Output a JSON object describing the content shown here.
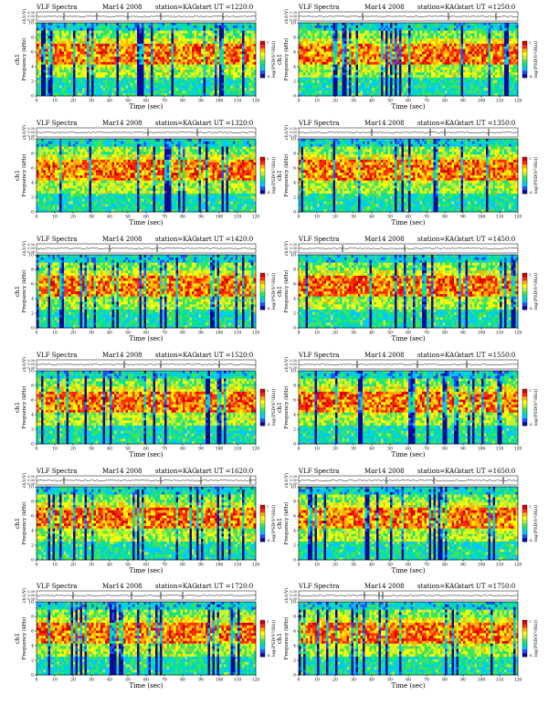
{
  "panel_header": {
    "title": "VLF Spectra",
    "date": "Mar14 2008",
    "station": "station=KAG",
    "start_prefix": "start  UT ="
  },
  "axis_labels": {
    "waveform_ylabel": "ch1(V)",
    "spectrogram_ylabel": "Frequency  (kHz)",
    "channel_label": "ch1",
    "xlabel": "Time  (sec)",
    "colorbar_label": "log(PSD(V²/Hz))"
  },
  "colors": {
    "colormap": [
      "#0a0a9a",
      "#1e4fff",
      "#00c8ff",
      "#00e0a0",
      "#3fe45a",
      "#b8f03a",
      "#ffff00",
      "#ffb000",
      "#ff3000",
      "#d80000"
    ]
  },
  "chart_data": [
    {
      "type": "heatmap",
      "start_ut": "1220:0",
      "x_ticks": [
        0,
        10,
        20,
        30,
        40,
        50,
        60,
        70,
        80,
        90,
        100,
        110,
        120
      ],
      "y_ticks": [
        0,
        2,
        4,
        6,
        8,
        10
      ],
      "waveform_ticks": [
        "0.30",
        "0.00",
        "-0.30"
      ],
      "colorbar_ticks": [
        1,
        -4
      ],
      "xlim": [
        0,
        120
      ],
      "ylim": [
        0,
        10
      ],
      "spike_times": [
        15,
        33,
        50,
        68,
        102
      ]
    },
    {
      "type": "heatmap",
      "start_ut": "1250:0",
      "x_ticks": [
        0,
        10,
        20,
        30,
        40,
        50,
        60,
        70,
        80,
        90,
        100,
        110,
        120
      ],
      "y_ticks": [
        0,
        2,
        4,
        6,
        8,
        10
      ],
      "waveform_ticks": [
        "0.30",
        "0.00",
        "-0.30"
      ],
      "colorbar_ticks": [
        1,
        -4
      ],
      "xlim": [
        0,
        120
      ],
      "ylim": [
        0,
        10
      ],
      "spike_times": [
        35,
        82,
        108
      ]
    },
    {
      "type": "heatmap",
      "start_ut": "1320:0",
      "x_ticks": [
        0,
        10,
        20,
        30,
        40,
        50,
        60,
        70,
        80,
        90,
        100,
        110,
        120
      ],
      "y_ticks": [
        0,
        2,
        4,
        6,
        8,
        10
      ],
      "waveform_ticks": [
        "0.30",
        "0.00",
        "-0.30"
      ],
      "colorbar_ticks": [
        1,
        -4
      ],
      "xlim": [
        0,
        120
      ],
      "ylim": [
        0,
        10
      ],
      "spike_times": [
        61,
        88
      ]
    },
    {
      "type": "heatmap",
      "start_ut": "1350:0",
      "x_ticks": [
        0,
        10,
        20,
        30,
        40,
        50,
        60,
        70,
        80,
        90,
        100,
        110,
        120
      ],
      "y_ticks": [
        0,
        2,
        4,
        6,
        8,
        10
      ],
      "waveform_ticks": [
        "0.30",
        "0.00",
        "-0.30"
      ],
      "colorbar_ticks": [
        1,
        -4
      ],
      "xlim": [
        0,
        120
      ],
      "ylim": [
        0,
        10
      ],
      "spike_times": [
        40,
        72,
        80,
        104
      ]
    },
    {
      "type": "heatmap",
      "start_ut": "1420:0",
      "x_ticks": [
        0,
        10,
        20,
        30,
        40,
        50,
        60,
        70,
        80,
        90,
        100,
        110,
        120
      ],
      "y_ticks": [
        0,
        2,
        4,
        6,
        8,
        10
      ],
      "waveform_ticks": [
        "0.30",
        "0.00",
        "-0.30"
      ],
      "colorbar_ticks": [
        1,
        -4
      ],
      "xlim": [
        0,
        120
      ],
      "ylim": [
        0,
        10
      ],
      "spike_times": [
        40,
        66
      ]
    },
    {
      "type": "heatmap",
      "start_ut": "1450:0",
      "x_ticks": [
        0,
        10,
        20,
        30,
        40,
        50,
        60,
        70,
        80,
        90,
        100,
        110,
        120
      ],
      "y_ticks": [
        0,
        2,
        4,
        6,
        8,
        10
      ],
      "waveform_ticks": [
        "0.30",
        "0.00",
        "-0.30"
      ],
      "colorbar_ticks": [
        1,
        -4
      ],
      "xlim": [
        0,
        120
      ],
      "ylim": [
        0,
        10
      ],
      "spike_times": [
        24,
        58
      ]
    },
    {
      "type": "heatmap",
      "start_ut": "1520:0",
      "x_ticks": [
        0,
        10,
        20,
        30,
        40,
        50,
        60,
        70,
        80,
        90,
        100,
        110,
        120
      ],
      "y_ticks": [
        0,
        2,
        4,
        6,
        8,
        10
      ],
      "waveform_ticks": [
        "0.30",
        "0.00",
        "-0.30"
      ],
      "colorbar_ticks": [
        1,
        -4
      ],
      "xlim": [
        0,
        120
      ],
      "ylim": [
        0,
        10
      ],
      "spike_times": [
        48,
        68,
        100
      ]
    },
    {
      "type": "heatmap",
      "start_ut": "1550:0",
      "x_ticks": [
        0,
        10,
        20,
        30,
        40,
        50,
        60,
        70,
        80,
        90,
        100,
        110,
        120
      ],
      "y_ticks": [
        0,
        2,
        4,
        6,
        8,
        10
      ],
      "waveform_ticks": [
        "0.30",
        "0.00",
        "-0.30"
      ],
      "colorbar_ticks": [
        1,
        -4
      ],
      "xlim": [
        0,
        120
      ],
      "ylim": [
        0,
        10
      ],
      "spike_times": [
        32,
        65,
        92
      ]
    },
    {
      "type": "heatmap",
      "start_ut": "1620:0",
      "x_ticks": [
        0,
        10,
        20,
        30,
        40,
        50,
        60,
        70,
        80,
        90,
        100,
        110,
        120
      ],
      "y_ticks": [
        0,
        2,
        4,
        6,
        8,
        10
      ],
      "waveform_ticks": [
        "0.30",
        "0.00",
        "-0.30"
      ],
      "colorbar_ticks": [
        1,
        -4
      ],
      "xlim": [
        0,
        120
      ],
      "ylim": [
        0,
        10
      ],
      "spike_times": [
        15,
        68,
        90,
        117
      ]
    },
    {
      "type": "heatmap",
      "start_ut": "1650:0",
      "x_ticks": [
        0,
        10,
        20,
        30,
        40,
        50,
        60,
        70,
        80,
        90,
        100,
        110,
        120
      ],
      "y_ticks": [
        0,
        2,
        4,
        6,
        8,
        10
      ],
      "waveform_ticks": [
        "0.30",
        "0.00",
        "-0.30"
      ],
      "colorbar_ticks": [
        1,
        -4
      ],
      "xlim": [
        0,
        120
      ],
      "ylim": [
        0,
        10
      ],
      "spike_times": [
        48,
        74,
        112
      ]
    },
    {
      "type": "heatmap",
      "start_ut": "1720:0",
      "x_ticks": [
        0,
        10,
        20,
        30,
        40,
        50,
        60,
        70,
        80,
        90,
        100,
        110,
        120
      ],
      "y_ticks": [
        0,
        2,
        4,
        6,
        8,
        10
      ],
      "waveform_ticks": [
        "0.30",
        "0.00",
        "-0.30"
      ],
      "colorbar_ticks": [
        1,
        -4
      ],
      "xlim": [
        0,
        120
      ],
      "ylim": [
        0,
        10
      ],
      "spike_times": [
        20,
        52,
        68,
        80
      ]
    },
    {
      "type": "heatmap",
      "start_ut": "1750:0",
      "x_ticks": [
        0,
        10,
        20,
        30,
        40,
        50,
        60,
        70,
        80,
        90,
        100,
        110,
        120
      ],
      "y_ticks": [
        0,
        2,
        4,
        6,
        8,
        10
      ],
      "waveform_ticks": [
        "0.30",
        "0.00",
        "-0.30"
      ],
      "colorbar_ticks": [
        1,
        -4
      ],
      "xlim": [
        0,
        120
      ],
      "ylim": [
        0,
        10
      ],
      "spike_times": [
        36,
        44,
        46
      ]
    }
  ]
}
